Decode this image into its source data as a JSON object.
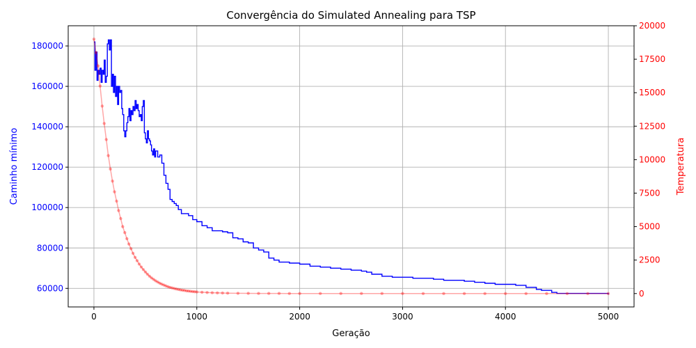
{
  "chart_data": {
    "type": "line",
    "title": "Convergência do Simulated Annealing para TSP",
    "xlabel": "Geração",
    "ylabel_left": "Caminho mínimo",
    "ylabel_right": "Temperatura",
    "grid": true,
    "xlim": [
      -250,
      5250
    ],
    "ylim_left": [
      50800,
      190000
    ],
    "ylim_right": [
      -1000,
      20000
    ],
    "xticks": [
      0,
      1000,
      2000,
      3000,
      4000,
      5000
    ],
    "yticks_left": [
      60000,
      80000,
      100000,
      120000,
      140000,
      160000,
      180000
    ],
    "yticks_right": [
      0,
      2500,
      5000,
      7500,
      10000,
      12500,
      15000,
      17500,
      20000
    ],
    "colors": {
      "left_axis": "#0000ff",
      "right_axis": "#ff0000",
      "path_series": "#0000ff",
      "temperature_series": "#ff0000"
    },
    "series": [
      {
        "axis": "left",
        "style": "line",
        "x": [
          0,
          10,
          20,
          30,
          40,
          50,
          60,
          70,
          80,
          90,
          100,
          110,
          120,
          130,
          140,
          150,
          160,
          170,
          180,
          190,
          200,
          210,
          220,
          230,
          240,
          250,
          260,
          270,
          280,
          290,
          300,
          310,
          320,
          330,
          340,
          350,
          360,
          370,
          380,
          390,
          400,
          410,
          420,
          430,
          440,
          450,
          460,
          470,
          480,
          490,
          500,
          510,
          520,
          530,
          540,
          550,
          560,
          570,
          580,
          590,
          600,
          620,
          640,
          660,
          680,
          700,
          720,
          740,
          760,
          780,
          800,
          820,
          850,
          880,
          900,
          920,
          960,
          1000,
          1050,
          1100,
          1150,
          1200,
          1250,
          1300,
          1350,
          1400,
          1450,
          1500,
          1550,
          1600,
          1650,
          1700,
          1750,
          1800,
          1900,
          2000,
          2100,
          2200,
          2300,
          2400,
          2500,
          2600,
          2650,
          2700,
          2800,
          2900,
          3000,
          3100,
          3200,
          3300,
          3400,
          3500,
          3600,
          3700,
          3800,
          3900,
          4000,
          4100,
          4200,
          4300,
          4350,
          4400,
          4450,
          4500,
          4600,
          4700,
          4800,
          4900,
          5000
        ],
        "values": [
          182000,
          168000,
          177000,
          163000,
          168000,
          166000,
          169000,
          162000,
          168000,
          166000,
          173000,
          162000,
          165000,
          181000,
          183000,
          178000,
          183000,
          160000,
          166000,
          157000,
          165000,
          155000,
          160000,
          151000,
          160000,
          157000,
          158000,
          149000,
          146000,
          138000,
          135000,
          138000,
          142000,
          145000,
          149000,
          143000,
          148000,
          146000,
          150000,
          148000,
          153000,
          149000,
          151000,
          148000,
          145000,
          146000,
          143000,
          150000,
          153000,
          137000,
          134000,
          132000,
          138000,
          134000,
          133000,
          131000,
          128000,
          126000,
          129000,
          125000,
          128000,
          125000,
          126000,
          122000,
          116000,
          112000,
          109000,
          104000,
          103000,
          102000,
          101000,
          99000,
          97000,
          97000,
          97000,
          96000,
          94000,
          93000,
          91000,
          90000,
          88500,
          88500,
          88000,
          87500,
          85000,
          84500,
          83000,
          82500,
          80000,
          79000,
          78000,
          75000,
          74000,
          73000,
          72500,
          72000,
          71000,
          70500,
          70000,
          69500,
          69000,
          68500,
          68000,
          67000,
          66000,
          65500,
          65500,
          65000,
          65000,
          64500,
          64000,
          64000,
          63500,
          63000,
          62500,
          62000,
          62000,
          61500,
          60500,
          59500,
          59000,
          59000,
          58000,
          57500,
          57500,
          57500,
          57500,
          57500,
          57000
        ]
      },
      {
        "axis": "right",
        "style": "dots",
        "x": [
          0,
          20,
          40,
          60,
          80,
          100,
          120,
          140,
          160,
          180,
          200,
          220,
          240,
          260,
          280,
          300,
          320,
          340,
          360,
          380,
          400,
          420,
          440,
          460,
          480,
          500,
          520,
          540,
          560,
          580,
          600,
          620,
          640,
          660,
          680,
          700,
          720,
          740,
          760,
          780,
          800,
          820,
          840,
          860,
          880,
          900,
          920,
          940,
          960,
          980,
          1000,
          1050,
          1100,
          1150,
          1200,
          1250,
          1300,
          1400,
          1500,
          1600,
          1700,
          1800,
          1900,
          2000,
          2200,
          2400,
          2600,
          2800,
          3000,
          3200,
          3400,
          3600,
          3800,
          4000,
          4200,
          4400,
          4600,
          4800,
          5000
        ],
        "values": [
          19000,
          18000,
          17000,
          15500,
          14000,
          12700,
          11500,
          10300,
          9300,
          8400,
          7600,
          6900,
          6200,
          5600,
          5000,
          4550,
          4100,
          3700,
          3350,
          3000,
          2700,
          2450,
          2200,
          1980,
          1790,
          1610,
          1450,
          1300,
          1170,
          1060,
          950,
          860,
          770,
          700,
          630,
          570,
          510,
          460,
          420,
          380,
          340,
          310,
          280,
          250,
          230,
          200,
          185,
          165,
          150,
          135,
          120,
          95,
          75,
          60,
          50,
          40,
          30,
          20,
          15,
          10,
          8,
          6,
          5,
          4,
          3,
          2,
          1,
          1,
          1,
          0,
          0,
          0,
          0,
          0,
          0,
          0,
          0,
          0,
          0
        ]
      }
    ]
  }
}
